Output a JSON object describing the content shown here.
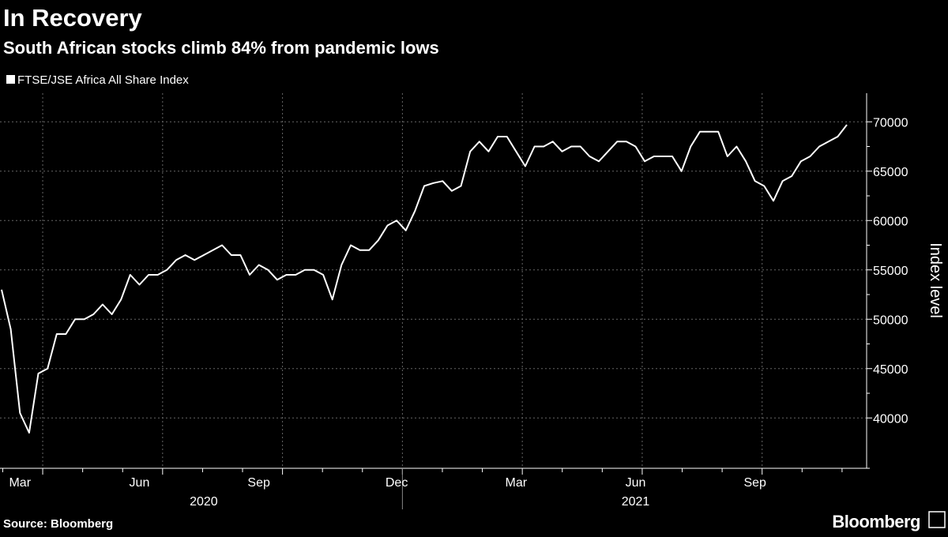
{
  "chart_data": {
    "type": "line",
    "title": "In Recovery",
    "subtitle": "South African stocks climb 84% from pandemic lows",
    "y_axis_label": "Index level",
    "source": "Source: Bloomberg",
    "brand": "Bloomberg",
    "years": [
      "2020",
      "2021"
    ],
    "categories": [
      null,
      null,
      "Mar",
      null,
      null,
      null,
      null,
      null,
      null,
      null,
      null,
      null,
      null,
      null,
      null,
      "Jun",
      null,
      null,
      null,
      null,
      null,
      null,
      null,
      null,
      null,
      null,
      null,
      null,
      "Sep",
      null,
      null,
      null,
      null,
      null,
      null,
      null,
      null,
      null,
      null,
      null,
      null,
      null,
      null,
      "Dec",
      null,
      null,
      null,
      null,
      null,
      null,
      null,
      null,
      null,
      null,
      null,
      null,
      "Mar",
      null,
      null,
      null,
      null,
      null,
      null,
      null,
      null,
      null,
      null,
      null,
      null,
      "Jun",
      null,
      null,
      null,
      null,
      null,
      null,
      null,
      null,
      null,
      null,
      null,
      null,
      "Sep",
      null,
      null,
      null,
      null,
      null,
      null,
      null,
      null,
      null,
      null
    ],
    "series": [
      {
        "name": "FTSE/JSE Africa All Share Index",
        "color": "#ffffff",
        "values": [
          53000,
          49000,
          40500,
          38500,
          44500,
          45000,
          48500,
          48500,
          50000,
          50000,
          50500,
          51500,
          50500,
          52000,
          54500,
          53500,
          54500,
          54500,
          55000,
          56000,
          56500,
          56000,
          56500,
          57000,
          57500,
          56500,
          56500,
          54500,
          55500,
          55000,
          54000,
          54500,
          54500,
          55000,
          55000,
          54500,
          52000,
          55500,
          57500,
          57000,
          57000,
          58000,
          59500,
          60000,
          59000,
          61000,
          63500,
          63800,
          64000,
          63000,
          63500,
          67000,
          68000,
          67000,
          68500,
          68500,
          67000,
          65500,
          67500,
          67500,
          68000,
          67000,
          67500,
          67500,
          66500,
          66000,
          67000,
          68000,
          68000,
          67500,
          66000,
          66500,
          66500,
          66500,
          65000,
          67500,
          69000,
          69000,
          69000,
          66500,
          67500,
          66000,
          64000,
          63500,
          62000,
          64000,
          64500,
          66000,
          66500,
          67500,
          68000,
          68500,
          69700
        ]
      }
    ],
    "ylim": [
      34900,
      72900
    ],
    "yticks": [
      40000,
      45000,
      50000,
      55000,
      60000,
      65000,
      70000
    ],
    "grid": true
  }
}
